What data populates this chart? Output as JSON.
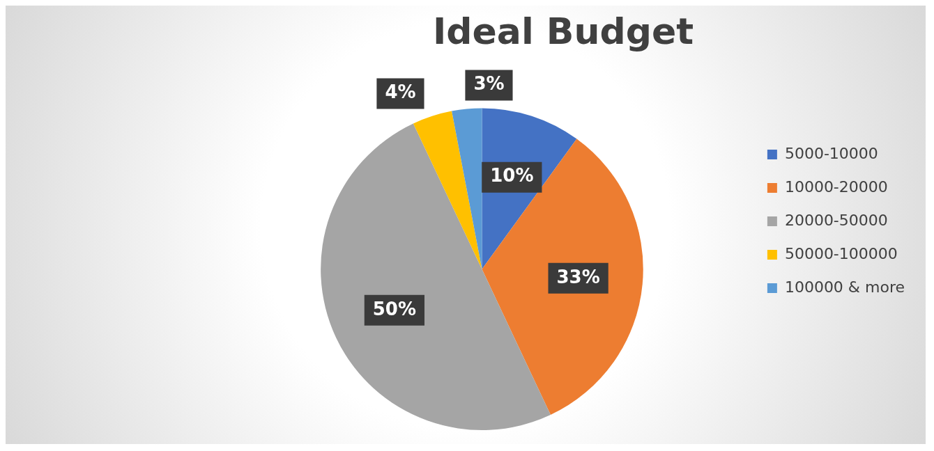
{
  "chart_data": {
    "type": "pie",
    "title": "Ideal Budget",
    "categories": [
      "5000-10000",
      "10000-20000",
      "20000-50000",
      "50000-100000",
      "100000 & more"
    ],
    "values": [
      10,
      33,
      50,
      4,
      3
    ],
    "colors": [
      "#4472c4",
      "#ed7d31",
      "#a5a5a5",
      "#ffc000",
      "#5b9bd5"
    ],
    "value_labels": [
      "10%",
      "33%",
      "50%",
      "4%",
      "3%"
    ],
    "legend": "right"
  }
}
